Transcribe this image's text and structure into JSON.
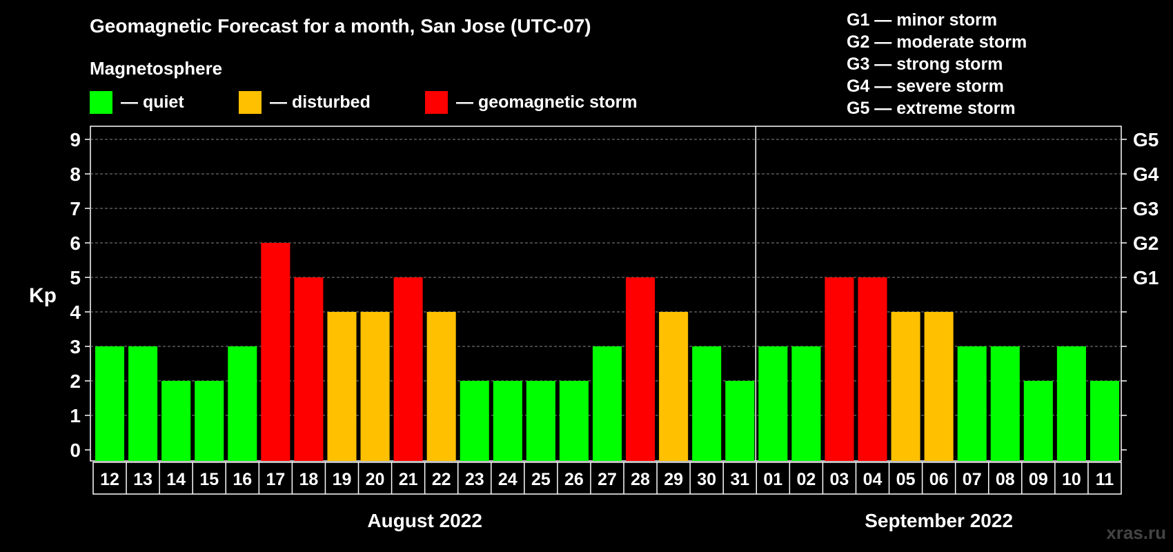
{
  "chart_data": {
    "type": "bar",
    "title": "Geomagnetic Forecast for a month, San Jose (UTC-07)",
    "subtitle": "Magnetosphere",
    "ylabel": "Kp",
    "ylim": [
      0,
      9
    ],
    "yticks": [
      "0",
      "1",
      "2",
      "3",
      "4",
      "5",
      "6",
      "7",
      "8",
      "9"
    ],
    "right_ticks": [
      {
        "kp": 5,
        "label": "G1"
      },
      {
        "kp": 6,
        "label": "G2"
      },
      {
        "kp": 7,
        "label": "G3"
      },
      {
        "kp": 8,
        "label": "G4"
      },
      {
        "kp": 9,
        "label": "G5"
      }
    ],
    "categories": [
      "12",
      "13",
      "14",
      "15",
      "16",
      "17",
      "18",
      "19",
      "20",
      "21",
      "22",
      "23",
      "24",
      "25",
      "26",
      "27",
      "28",
      "29",
      "30",
      "31",
      "01",
      "02",
      "03",
      "04",
      "05",
      "06",
      "07",
      "08",
      "09",
      "10",
      "11"
    ],
    "values": [
      3,
      3,
      2,
      2,
      3,
      6,
      5,
      4,
      4,
      5,
      4,
      2,
      2,
      2,
      2,
      3,
      5,
      4,
      3,
      2,
      3,
      3,
      5,
      5,
      4,
      4,
      3,
      3,
      2,
      3,
      2
    ],
    "status": [
      "quiet",
      "quiet",
      "quiet",
      "quiet",
      "quiet",
      "storm",
      "storm",
      "disturbed",
      "disturbed",
      "storm",
      "disturbed",
      "quiet",
      "quiet",
      "quiet",
      "quiet",
      "quiet",
      "storm",
      "disturbed",
      "quiet",
      "quiet",
      "quiet",
      "quiet",
      "storm",
      "storm",
      "disturbed",
      "disturbed",
      "quiet",
      "quiet",
      "quiet",
      "quiet",
      "quiet"
    ],
    "months": [
      {
        "label": "August 2022",
        "start": 0,
        "count": 20
      },
      {
        "label": "September 2022",
        "start": 20,
        "count": 11
      }
    ],
    "grid": true
  },
  "legend": [
    {
      "key": "quiet",
      "label": "— quiet",
      "color": "#00ff00"
    },
    {
      "key": "disturbed",
      "label": "— disturbed",
      "color": "#ffc000"
    },
    {
      "key": "storm",
      "label": "— geomagnetic storm",
      "color": "#ff0000"
    }
  ],
  "storm_scale": [
    "G1 — minor storm",
    "G2 — moderate storm",
    "G3 — strong storm",
    "G4 — severe storm",
    "G5 — extreme storm"
  ],
  "watermark": "xras.ru"
}
